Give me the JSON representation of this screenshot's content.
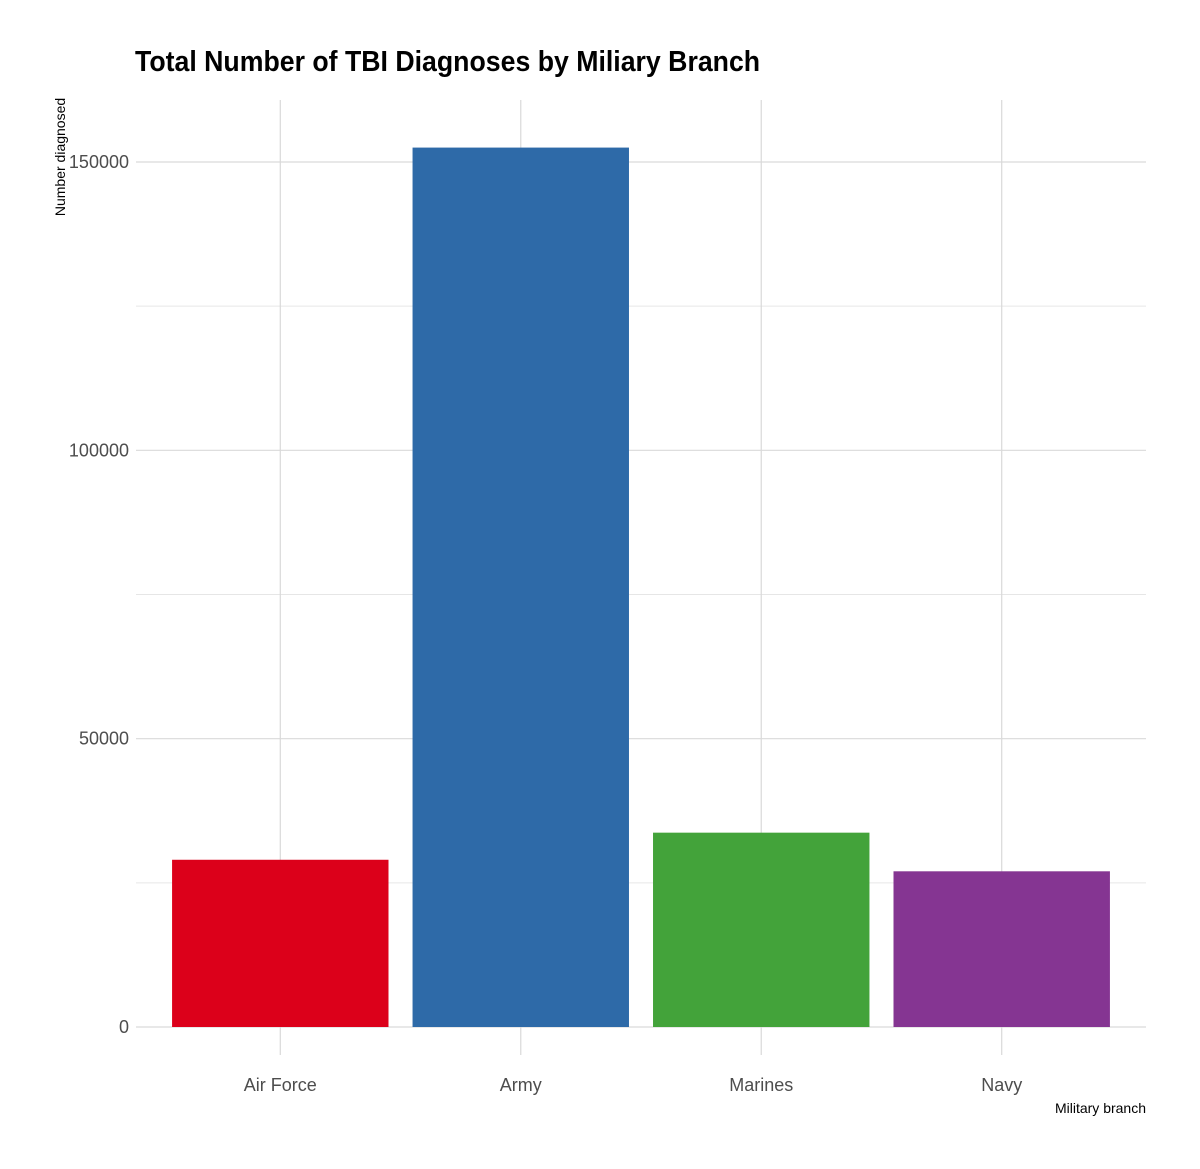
{
  "chart_data": {
    "type": "bar",
    "title": "Total Number of TBI Diagnoses by Miliary Branch",
    "xlabel": "Military branch",
    "ylabel": "Number diagnosed",
    "categories": [
      "Air Force",
      "Army",
      "Marines",
      "Navy"
    ],
    "values": [
      29000,
      152500,
      33700,
      27000
    ],
    "colors": [
      "#dc001a",
      "#2e6aa8",
      "#43a33a",
      "#853592"
    ],
    "ylim": [
      0,
      160000
    ],
    "yticks": [
      0,
      50000,
      100000,
      150000
    ],
    "ytick_labels": [
      "0",
      "50000",
      "100000",
      "150000"
    ],
    "minor_yticks": [
      25000,
      75000,
      125000
    ],
    "grid": true,
    "legend": "none"
  }
}
